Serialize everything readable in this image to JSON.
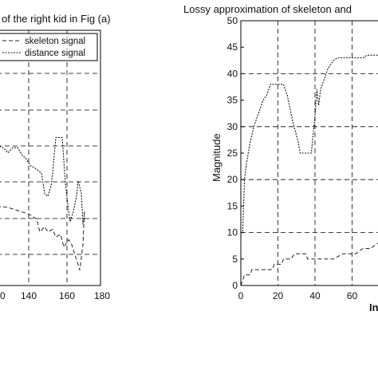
{
  "chart_data": [
    {
      "type": "line",
      "title": "of the right kid in Fig (a)",
      "xlabel": "",
      "ylabel": "",
      "xlim": [
        120,
        180
      ],
      "ylim": [
        0,
        50
      ],
      "xticks": [
        "0",
        "140",
        "160",
        "180"
      ],
      "grid": true,
      "legend_placement": "top-right",
      "series": [
        {
          "name": "skeleton signal",
          "points": [
            [
              120,
              15.5
            ],
            [
              127,
              15.3
            ],
            [
              130,
              15.0
            ],
            [
              135,
              14.5
            ],
            [
              140,
              14.0
            ],
            [
              145,
              13.0
            ],
            [
              147,
              10.5
            ],
            [
              150,
              11.5
            ],
            [
              152,
              10.5
            ],
            [
              155,
              11.0
            ],
            [
              157,
              9.5
            ],
            [
              160,
              10.0
            ],
            [
              162,
              7.5
            ],
            [
              165,
              9.0
            ],
            [
              167,
              8.0
            ],
            [
              170,
              5.0
            ],
            [
              172,
              3.0
            ],
            [
              174,
              8.0
            ],
            [
              175,
              15.0
            ]
          ]
        },
        {
          "name": "distance signal",
          "points": [
            [
              120,
              27.5
            ],
            [
              124,
              27.0
            ],
            [
              127,
              26.0
            ],
            [
              130,
              27.0
            ],
            [
              133,
              27.0
            ],
            [
              136,
              25.5
            ],
            [
              138,
              25.0
            ],
            [
              141,
              23.5
            ],
            [
              144,
              23.0
            ],
            [
              148,
              22.0
            ],
            [
              150,
              18.0
            ],
            [
              152,
              17.5
            ],
            [
              154,
              19.5
            ],
            [
              155,
              22.0
            ],
            [
              157,
              29.0
            ],
            [
              159,
              29.0
            ],
            [
              161,
              29.0
            ],
            [
              163,
              20.0
            ],
            [
              165,
              14.5
            ],
            [
              166,
              12.5
            ],
            [
              168,
              14.5
            ],
            [
              170,
              17.5
            ],
            [
              171,
              20.5
            ],
            [
              173,
              18.0
            ],
            [
              174,
              12.0
            ],
            [
              175,
              14.0
            ]
          ]
        }
      ]
    },
    {
      "type": "line",
      "title": "Lossy approximation of skeleton and",
      "xlabel": "In",
      "ylabel": "Magnitude",
      "xlim": [
        0,
        90
      ],
      "ylim": [
        0,
        50
      ],
      "xticks": [
        "0",
        "20",
        "40",
        "60"
      ],
      "yticks": [
        "0",
        "5",
        "10",
        "15",
        "20",
        "25",
        "30",
        "35",
        "40",
        "45",
        "50"
      ],
      "grid": true,
      "series": [
        {
          "points": [
            [
              0,
              10
            ],
            [
              1,
              10
            ],
            [
              2,
              20
            ],
            [
              3,
              23
            ],
            [
              5,
              27
            ],
            [
              7,
              30
            ],
            [
              9,
              32
            ],
            [
              12,
              35
            ],
            [
              14,
              36
            ],
            [
              16,
              38
            ],
            [
              23,
              38
            ],
            [
              25,
              36
            ],
            [
              28,
              31
            ],
            [
              31,
              27
            ],
            [
              32,
              25
            ],
            [
              38,
              25
            ],
            [
              40,
              32
            ],
            [
              41,
              37
            ],
            [
              42,
              34
            ],
            [
              43,
              37
            ],
            [
              45,
              39
            ],
            [
              47,
              41
            ],
            [
              50,
              42.5
            ],
            [
              52,
              43
            ],
            [
              66,
              43
            ],
            [
              68,
              43.5
            ],
            [
              85,
              43.5
            ],
            [
              87,
              44.5
            ],
            [
              90,
              47
            ]
          ]
        },
        {
          "points": [
            [
              0,
              0
            ],
            [
              2,
              2
            ],
            [
              5,
              2
            ],
            [
              6,
              3
            ],
            [
              17,
              3
            ],
            [
              18,
              4
            ],
            [
              22,
              4
            ],
            [
              23,
              5
            ],
            [
              27,
              5
            ],
            [
              29,
              6
            ],
            [
              35,
              6
            ],
            [
              36,
              5
            ],
            [
              50,
              5
            ],
            [
              55,
              6
            ],
            [
              62,
              6
            ],
            [
              66,
              7
            ],
            [
              70,
              7
            ],
            [
              74,
              8
            ],
            [
              90,
              8
            ]
          ]
        }
      ]
    }
  ]
}
